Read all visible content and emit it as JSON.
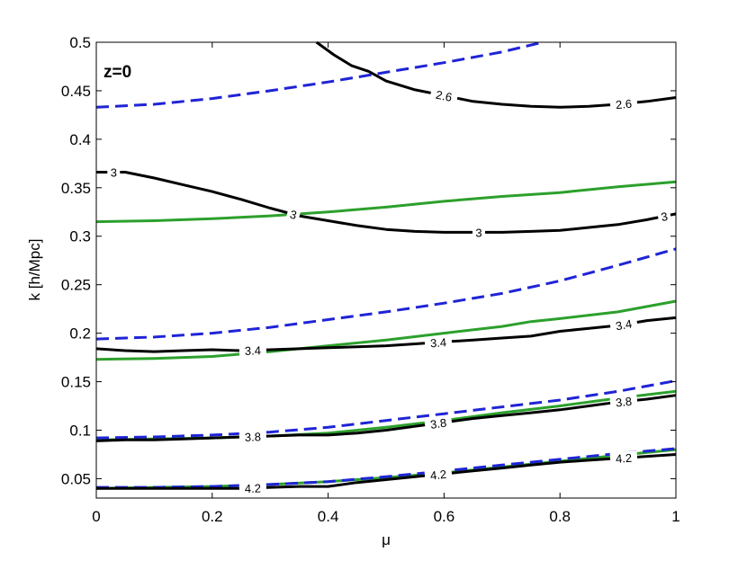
{
  "chart_data": {
    "type": "line",
    "annotation": "z=0",
    "xlabel": "μ",
    "ylabel": "k [h/Mpc]",
    "xlim": [
      0,
      1
    ],
    "ylim": [
      0.03,
      0.5
    ],
    "xticks": [
      "0",
      "0.2",
      "0.4",
      "0.6",
      "0.8",
      "1"
    ],
    "yticks": [
      "0.05",
      "0.1",
      "0.15",
      "0.2",
      "0.25",
      "0.3",
      "0.35",
      "0.4",
      "0.45",
      "0.5"
    ],
    "xtick_values": [
      0,
      0.2,
      0.4,
      0.6,
      0.8,
      1
    ],
    "ytick_values": [
      0.05,
      0.1,
      0.15,
      0.2,
      0.25,
      0.3,
      0.35,
      0.4,
      0.45,
      0.5
    ],
    "grid": false,
    "colors": {
      "black": "#000000",
      "green": "#2ca02c",
      "blue": "#1f24d6"
    },
    "series": [
      {
        "color": "black",
        "style": "solid",
        "label": "2.6",
        "x": [
          0.38,
          0.41,
          0.44,
          0.47,
          0.5,
          0.55,
          0.6,
          0.65,
          0.7,
          0.75,
          0.8,
          0.85,
          0.9,
          0.95,
          1.0
        ],
        "y": [
          0.5,
          0.487,
          0.476,
          0.47,
          0.46,
          0.451,
          0.445,
          0.439,
          0.436,
          0.434,
          0.433,
          0.434,
          0.436,
          0.439,
          0.443
        ],
        "labels_at": [
          0.6,
          0.91
        ]
      },
      {
        "color": "black",
        "style": "solid",
        "label": "3",
        "x": [
          0,
          0.05,
          0.1,
          0.15,
          0.2,
          0.25,
          0.3,
          0.35,
          0.4,
          0.45,
          0.5,
          0.55,
          0.6,
          0.65,
          0.7,
          0.75,
          0.8,
          0.85,
          0.9,
          0.95,
          1.0
        ],
        "y": [
          0.366,
          0.366,
          0.36,
          0.353,
          0.346,
          0.338,
          0.329,
          0.321,
          0.316,
          0.311,
          0.307,
          0.305,
          0.304,
          0.304,
          0.304,
          0.305,
          0.306,
          0.309,
          0.312,
          0.317,
          0.323
        ],
        "labels_at": [
          0.03,
          0.34,
          0.66,
          0.98
        ]
      },
      {
        "color": "black",
        "style": "solid",
        "label": "3.4",
        "x": [
          0,
          0.05,
          0.1,
          0.15,
          0.2,
          0.25,
          0.3,
          0.35,
          0.4,
          0.45,
          0.5,
          0.55,
          0.6,
          0.65,
          0.7,
          0.75,
          0.8,
          0.85,
          0.9,
          0.95,
          1.0
        ],
        "y": [
          0.184,
          0.182,
          0.181,
          0.182,
          0.183,
          0.182,
          0.183,
          0.184,
          0.185,
          0.186,
          0.187,
          0.189,
          0.191,
          0.193,
          0.195,
          0.197,
          0.202,
          0.205,
          0.208,
          0.213,
          0.216
        ],
        "labels_at": [
          0.27,
          0.59,
          0.91
        ]
      },
      {
        "color": "black",
        "style": "solid",
        "label": "3.8",
        "x": [
          0,
          0.05,
          0.1,
          0.15,
          0.2,
          0.25,
          0.3,
          0.35,
          0.4,
          0.45,
          0.5,
          0.55,
          0.6,
          0.65,
          0.7,
          0.75,
          0.8,
          0.85,
          0.9,
          0.95,
          1.0
        ],
        "y": [
          0.089,
          0.09,
          0.09,
          0.091,
          0.092,
          0.093,
          0.094,
          0.095,
          0.095,
          0.097,
          0.1,
          0.104,
          0.108,
          0.112,
          0.115,
          0.118,
          0.121,
          0.125,
          0.129,
          0.132,
          0.136
        ],
        "labels_at": [
          0.27,
          0.59,
          0.91
        ]
      },
      {
        "color": "black",
        "style": "solid",
        "label": "4.2",
        "x": [
          0,
          0.05,
          0.1,
          0.15,
          0.2,
          0.25,
          0.3,
          0.35,
          0.4,
          0.45,
          0.5,
          0.55,
          0.6,
          0.65,
          0.7,
          0.75,
          0.8,
          0.85,
          0.9,
          0.95,
          1.0
        ],
        "y": [
          0.04,
          0.04,
          0.04,
          0.04,
          0.04,
          0.04,
          0.041,
          0.042,
          0.042,
          0.046,
          0.049,
          0.052,
          0.055,
          0.058,
          0.061,
          0.064,
          0.067,
          0.069,
          0.071,
          0.073,
          0.075
        ],
        "labels_at": [
          0.27,
          0.59,
          0.91
        ]
      },
      {
        "color": "green",
        "style": "solid",
        "x": [
          0,
          0.1,
          0.2,
          0.3,
          0.4,
          0.5,
          0.6,
          0.7,
          0.8,
          0.9,
          1.0
        ],
        "y": [
          0.315,
          0.316,
          0.318,
          0.321,
          0.325,
          0.33,
          0.336,
          0.341,
          0.345,
          0.351,
          0.356
        ]
      },
      {
        "color": "green",
        "style": "solid",
        "x": [
          0,
          0.1,
          0.2,
          0.3,
          0.4,
          0.5,
          0.6,
          0.7,
          0.75,
          0.8,
          0.9,
          1.0
        ],
        "y": [
          0.173,
          0.174,
          0.176,
          0.181,
          0.187,
          0.193,
          0.2,
          0.207,
          0.212,
          0.215,
          0.222,
          0.233
        ]
      },
      {
        "color": "green",
        "style": "solid",
        "x": [
          0,
          0.1,
          0.2,
          0.3,
          0.4,
          0.5,
          0.6,
          0.7,
          0.8,
          0.9,
          1.0
        ],
        "y": [
          0.09,
          0.091,
          0.092,
          0.094,
          0.097,
          0.103,
          0.11,
          0.118,
          0.125,
          0.133,
          0.14
        ]
      },
      {
        "color": "green",
        "style": "solid",
        "x": [
          0,
          0.1,
          0.2,
          0.3,
          0.4,
          0.5,
          0.6,
          0.7,
          0.8,
          0.9,
          1.0
        ],
        "y": [
          0.04,
          0.041,
          0.042,
          0.044,
          0.047,
          0.051,
          0.056,
          0.062,
          0.068,
          0.074,
          0.08
        ]
      },
      {
        "color": "blue",
        "style": "dashed",
        "x": [
          0,
          0.1,
          0.2,
          0.3,
          0.4,
          0.5,
          0.6,
          0.7,
          0.77
        ],
        "y": [
          0.433,
          0.436,
          0.442,
          0.45,
          0.459,
          0.469,
          0.479,
          0.49,
          0.5
        ]
      },
      {
        "color": "blue",
        "style": "dashed",
        "x": [
          0,
          0.1,
          0.2,
          0.3,
          0.4,
          0.5,
          0.6,
          0.7,
          0.8,
          0.9,
          1.0
        ],
        "y": [
          0.194,
          0.196,
          0.2,
          0.206,
          0.214,
          0.222,
          0.231,
          0.241,
          0.254,
          0.27,
          0.287
        ]
      },
      {
        "color": "blue",
        "style": "dashed",
        "x": [
          0,
          0.1,
          0.2,
          0.3,
          0.4,
          0.5,
          0.6,
          0.7,
          0.8,
          0.9,
          1.0
        ],
        "y": [
          0.092,
          0.093,
          0.095,
          0.098,
          0.103,
          0.11,
          0.117,
          0.124,
          0.131,
          0.14,
          0.151
        ]
      },
      {
        "color": "blue",
        "style": "dashed",
        "x": [
          0,
          0.1,
          0.2,
          0.3,
          0.4,
          0.5,
          0.6,
          0.7,
          0.8,
          0.9,
          1.0
        ],
        "y": [
          0.041,
          0.041,
          0.042,
          0.044,
          0.047,
          0.052,
          0.058,
          0.064,
          0.07,
          0.076,
          0.081
        ]
      }
    ]
  }
}
